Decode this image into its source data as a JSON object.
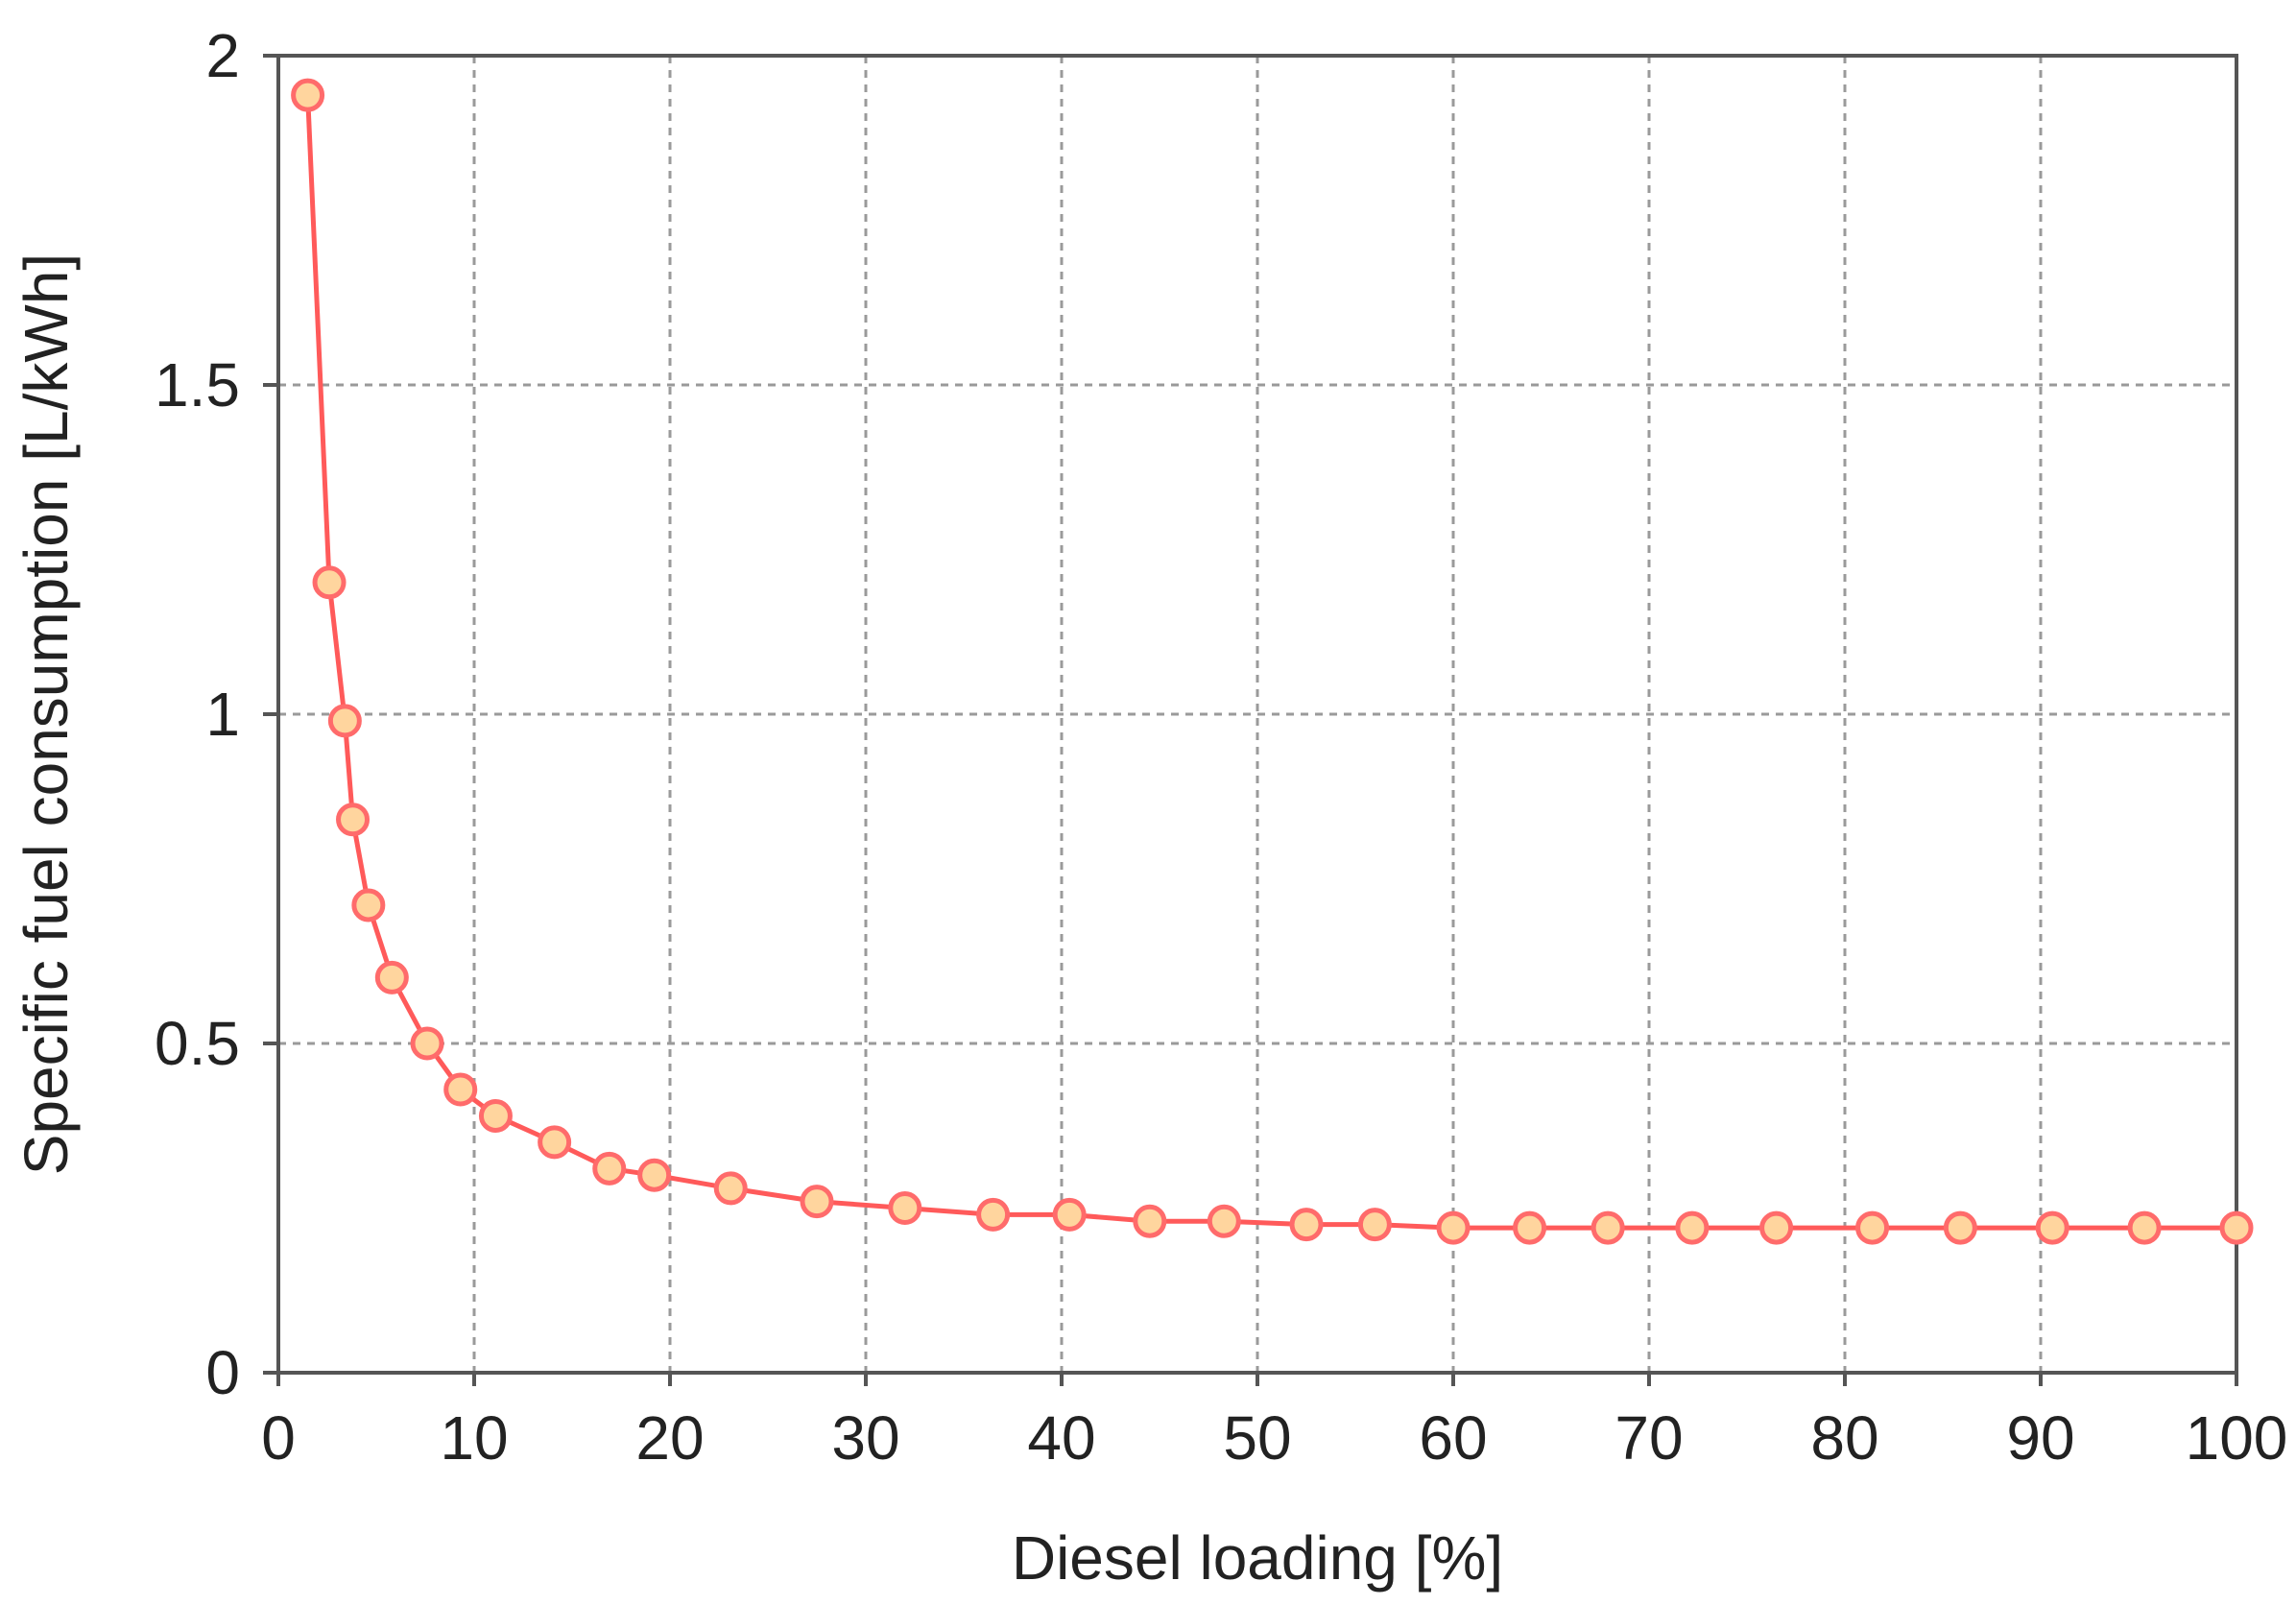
{
  "chart_data": {
    "type": "line",
    "title": "",
    "xlabel": "Diesel loading [%]",
    "ylabel": "Specific fuel consumption [L/kWh]",
    "xlim": [
      0,
      100
    ],
    "ylim": [
      0,
      2
    ],
    "x_ticks": [
      0,
      10,
      20,
      30,
      40,
      50,
      60,
      70,
      80,
      90,
      100
    ],
    "x_tick_labels": [
      "0",
      "10",
      "20",
      "30",
      "40",
      "50",
      "60",
      "70",
      "80",
      "90",
      "100"
    ],
    "y_ticks": [
      0,
      0.5,
      1,
      1.5,
      2
    ],
    "y_tick_labels": [
      "0",
      "0.5",
      "1",
      "1.5",
      "2"
    ],
    "grid": true,
    "legend": "none",
    "colors": {
      "line": "#ff5a5a",
      "marker_fill": "#ffd59e",
      "marker_stroke": "#ff6b6b",
      "grid": "#9a9a9a",
      "axes": "#555555"
    },
    "series": [
      {
        "x": [
          1.5,
          2.6,
          3.4,
          3.8,
          4.6,
          5.8,
          7.6,
          9.3,
          11.1,
          14.1,
          16.9,
          19.2,
          23.1,
          27.5,
          32.0,
          36.5,
          40.4,
          44.5,
          48.3,
          52.5,
          56.0,
          60.0,
          63.9,
          67.9,
          72.2,
          76.5,
          81.4,
          85.9,
          90.6,
          95.3,
          100.0
        ],
        "values": [
          1.94,
          1.2,
          0.99,
          0.84,
          0.71,
          0.6,
          0.5,
          0.43,
          0.39,
          0.35,
          0.31,
          0.3,
          0.28,
          0.26,
          0.25,
          0.24,
          0.24,
          0.23,
          0.23,
          0.225,
          0.225,
          0.22,
          0.22,
          0.22,
          0.22,
          0.22,
          0.22,
          0.22,
          0.22,
          0.22,
          0.22
        ]
      }
    ]
  }
}
